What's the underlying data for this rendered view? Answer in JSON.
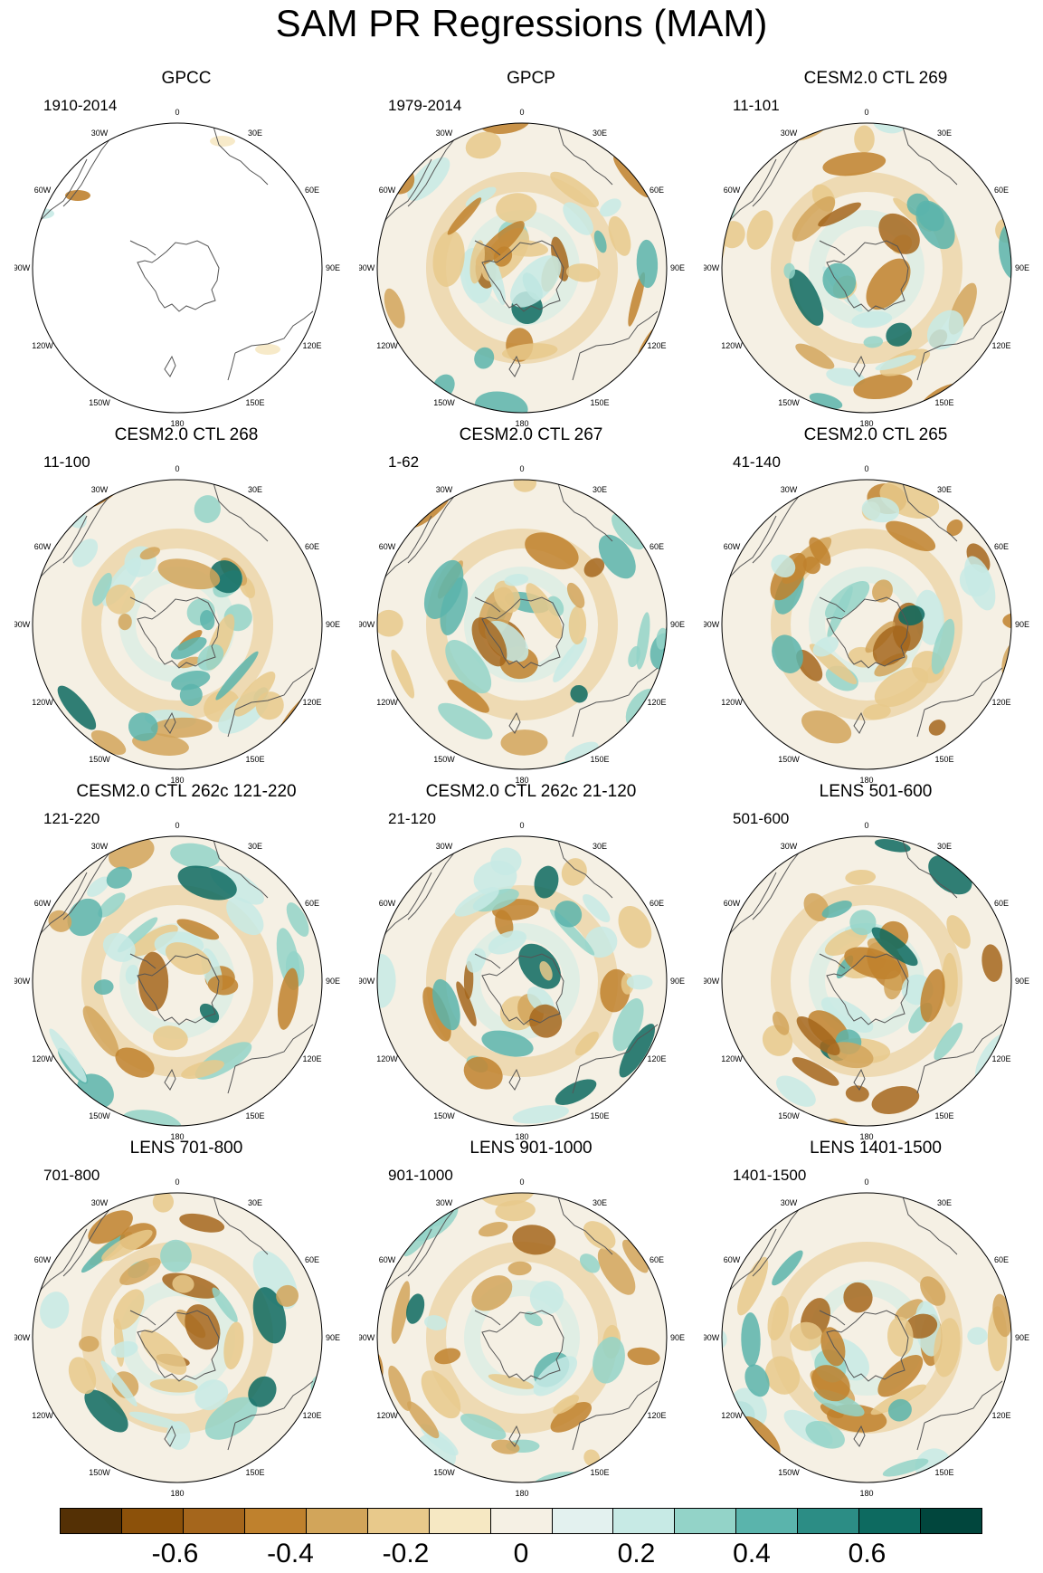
{
  "figure": {
    "title": "SAM PR Regressions (MAM)"
  },
  "longitude_labels": [
    "0",
    "30E",
    "60E",
    "90E",
    "120E",
    "150E",
    "180",
    "150W",
    "120W",
    "90W",
    "60W",
    "30W"
  ],
  "panels": [
    {
      "title": "GPCC",
      "period": "1910-2014",
      "coverage": "land-only"
    },
    {
      "title": "GPCP",
      "period": "1979-2014",
      "coverage": "global"
    },
    {
      "title": "CESM2.0 CTL 269",
      "period": "11-101",
      "coverage": "global"
    },
    {
      "title": "CESM2.0 CTL 268",
      "period": "11-100",
      "coverage": "global"
    },
    {
      "title": "CESM2.0 CTL 267",
      "period": "1-62",
      "coverage": "global"
    },
    {
      "title": "CESM2.0 CTL 265",
      "period": "41-140",
      "coverage": "global"
    },
    {
      "title": "CESM2.0 CTL 262c 121-220",
      "period": "121-220",
      "coverage": "global"
    },
    {
      "title": "CESM2.0 CTL 262c 21-120",
      "period": "21-120",
      "coverage": "global"
    },
    {
      "title": "LENS 501-600",
      "period": "501-600",
      "coverage": "global"
    },
    {
      "title": "LENS 701-800",
      "period": "701-800",
      "coverage": "global"
    },
    {
      "title": "LENS 901-1000",
      "period": "901-1000",
      "coverage": "global"
    },
    {
      "title": "LENS 1401-1500",
      "period": "1401-1500",
      "coverage": "global"
    }
  ],
  "colorbar": {
    "colors": [
      "#543005",
      "#8c510a",
      "#a5661c",
      "#bf812d",
      "#d2a55a",
      "#e8c98b",
      "#f6e8c3",
      "#f5f0e4",
      "#e3f1ef",
      "#c7eae5",
      "#93d3c8",
      "#5ab4ac",
      "#2c8d85",
      "#0d6a60",
      "#01463d"
    ],
    "tick_labels": [
      "-0.6",
      "-0.4",
      "-0.2",
      "0",
      "0.2",
      "0.4",
      "0.6"
    ],
    "tick_values": [
      -0.6,
      -0.4,
      -0.2,
      0,
      0.2,
      0.4,
      0.6
    ],
    "range": [
      -0.8,
      0.8
    ]
  },
  "chart_data": {
    "type": "heatmap",
    "title": "SAM PR Regressions (MAM)",
    "projection": "south polar stereographic",
    "season": "MAM",
    "levels": [
      -0.7,
      -0.6,
      -0.5,
      -0.4,
      -0.3,
      -0.2,
      -0.1,
      0,
      0.1,
      0.2,
      0.3,
      0.4,
      0.5,
      0.6,
      0.7
    ],
    "colorbar_ticks": [
      -0.6,
      -0.4,
      -0.2,
      0,
      0.2,
      0.4,
      0.6
    ]
  }
}
